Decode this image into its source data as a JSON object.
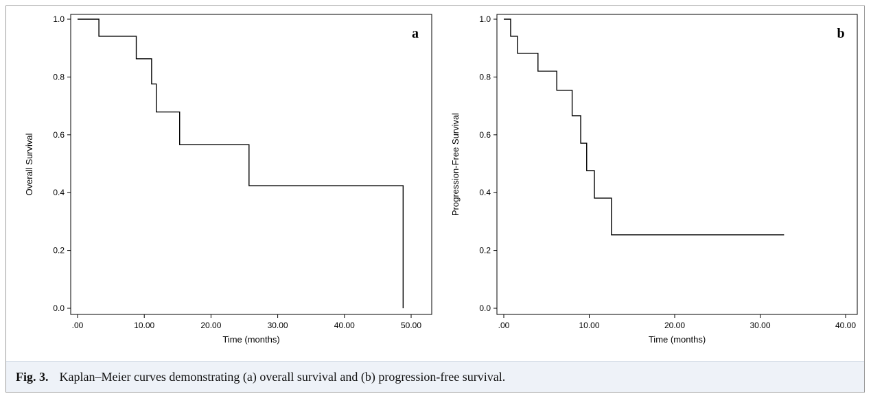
{
  "figure": {
    "caption_label": "Fig. 3.",
    "caption_text": "Kaplan–Meier curves demonstrating (a) overall survival and (b) progression-free survival."
  },
  "chart_data": [
    {
      "type": "line",
      "step": true,
      "panel_label": "a",
      "title": "",
      "xlabel": "Time (months)",
      "ylabel": "Overall Survival",
      "xlim": [
        0,
        50
      ],
      "ylim": [
        0,
        1.0
      ],
      "xticks": [
        ".00",
        "10.00",
        "20.00",
        "30.00",
        "40.00",
        "50.00"
      ],
      "xtick_values": [
        0,
        10,
        20,
        30,
        40,
        50
      ],
      "yticks": [
        "0.0",
        "0.2",
        "0.4",
        "0.6",
        "0.8",
        "1.0"
      ],
      "ytick_values": [
        0,
        0.2,
        0.4,
        0.6,
        0.8,
        1.0
      ],
      "grid": false,
      "series": [
        {
          "x": [
            0,
            3.2,
            8.8,
            11.1,
            11.8,
            15.3,
            25.7,
            48.8
          ],
          "y": [
            1.0,
            0.941,
            0.863,
            0.776,
            0.679,
            0.566,
            0.424,
            0.0
          ]
        }
      ]
    },
    {
      "type": "line",
      "step": true,
      "panel_label": "b",
      "title": "",
      "xlabel": "Time (months)",
      "ylabel": "Progression-Free Survival",
      "xlim": [
        0,
        40
      ],
      "ylim": [
        0,
        1.0
      ],
      "xticks": [
        ".00",
        "10.00",
        "20.00",
        "30.00",
        "40.00"
      ],
      "xtick_values": [
        0,
        10,
        20,
        30,
        40
      ],
      "yticks": [
        "0.0",
        "0.2",
        "0.4",
        "0.6",
        "0.8",
        "1.0"
      ],
      "ytick_values": [
        0,
        0.2,
        0.4,
        0.6,
        0.8,
        1.0
      ],
      "grid": false,
      "series": [
        {
          "x": [
            0,
            0.8,
            1.6,
            4.0,
            6.2,
            8.0,
            9.0,
            9.7,
            10.6,
            12.6,
            32.8
          ],
          "y": [
            1.0,
            0.941,
            0.882,
            0.82,
            0.754,
            0.666,
            0.571,
            0.476,
            0.381,
            0.254,
            0.254
          ]
        }
      ]
    }
  ]
}
